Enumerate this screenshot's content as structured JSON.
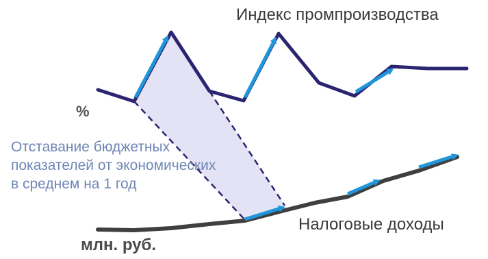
{
  "labels": {
    "index": "Индекс промпроизводства",
    "taxes": "Налоговые доходы",
    "percent_unit": "%",
    "rub_unit": "млн. руб.",
    "lag_lines": [
      "Отставание бюджетных",
      "показателей от экономических",
      "в среднем на 1 год"
    ]
  },
  "colors": {
    "index_line": "#2b2470",
    "taxes_line": "#3f3f3f",
    "arrow": "#1e96d9",
    "band_fill": "#e4e3f5",
    "band_stroke": "#2b2470",
    "lag_text": "#6f86b5"
  }
}
